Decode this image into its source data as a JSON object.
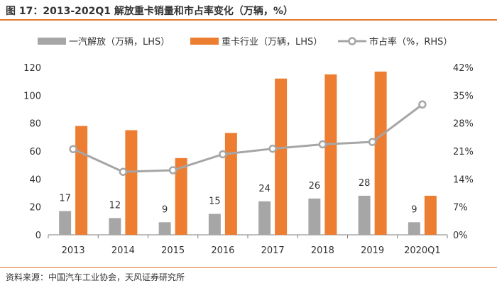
{
  "title": "图 17：2013-202Q1 解放重卡销量和市占率变化（万辆，%）",
  "source": "资料来源：中国汽车工业协会，天风证券研究所",
  "colors": {
    "gray": "#A6A6A6",
    "orange": "#ED7D31",
    "line": "#A6A6A6",
    "accent": "#E8782F"
  },
  "chart_data": {
    "type": "bar",
    "categories": [
      "2013",
      "2014",
      "2015",
      "2016",
      "2017",
      "2018",
      "2019",
      "2020Q1"
    ],
    "series": [
      {
        "name": "一汽解放（万辆，LHS）",
        "type": "bar",
        "axis": "left",
        "values": [
          17,
          12,
          9,
          15,
          24,
          26,
          28,
          9
        ]
      },
      {
        "name": "重卡行业（万辆，LHS）",
        "type": "bar",
        "axis": "left",
        "values": [
          78,
          75,
          55,
          73,
          112,
          115,
          117,
          28
        ]
      },
      {
        "name": "市占率（%，RHS）",
        "type": "line",
        "axis": "right",
        "values": [
          21.5,
          15.8,
          16.2,
          20.2,
          21.6,
          22.7,
          23.3,
          32.7
        ]
      }
    ],
    "data_labels": [
      "17",
      "12",
      "9",
      "15",
      "24",
      "26",
      "28",
      "9"
    ],
    "left_axis": {
      "ylim": [
        0,
        120
      ],
      "ticks": [
        "0",
        "20",
        "40",
        "60",
        "80",
        "100",
        "120"
      ],
      "tick_values": [
        0,
        20,
        40,
        60,
        80,
        100,
        120
      ]
    },
    "right_axis": {
      "ylim": [
        0,
        42
      ],
      "ticks": [
        "0%",
        "7%",
        "14%",
        "21%",
        "28%",
        "35%",
        "42%"
      ],
      "tick_values": [
        0,
        7,
        14,
        21,
        28,
        35,
        42
      ]
    },
    "legend": "top"
  }
}
